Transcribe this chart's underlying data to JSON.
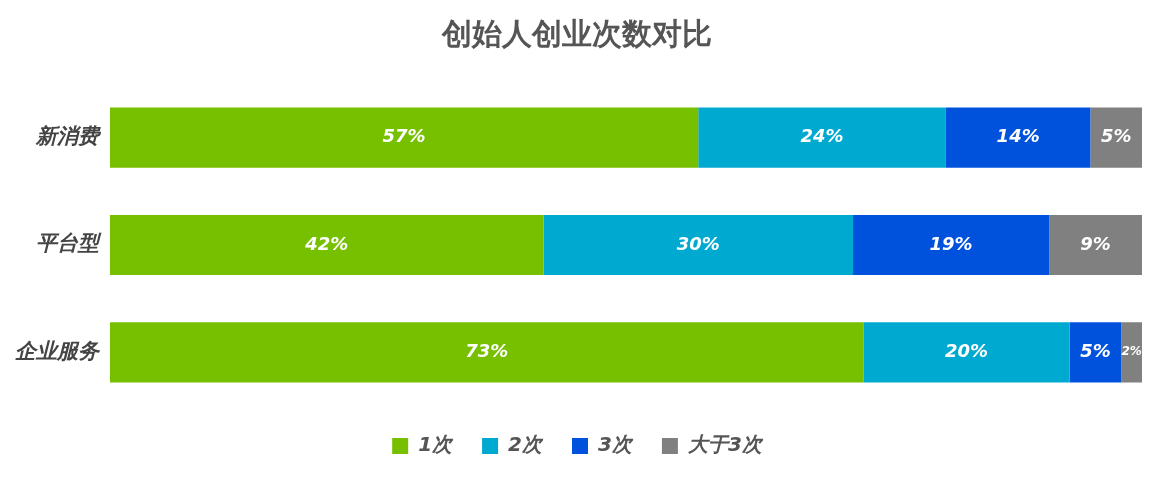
{
  "chart_data": {
    "type": "bar",
    "title": "创始人创业次数对比",
    "orientation": "horizontal",
    "stacked": true,
    "categories": [
      "新消费",
      "平台型",
      "企业服务"
    ],
    "xlim": [
      0,
      100
    ],
    "tick_labels": "y",
    "legend": "bottom",
    "series": [
      {
        "name": "1次",
        "color": "#76c000",
        "values": [
          57,
          42,
          73
        ],
        "value_labels": [
          "57%",
          "42%",
          "73%"
        ]
      },
      {
        "name": "2次",
        "color": "#00a9d0",
        "values": [
          24,
          30,
          20
        ],
        "value_labels": [
          "24%",
          "30%",
          "20%"
        ]
      },
      {
        "name": "3次",
        "color": "#0052dd",
        "values": [
          14,
          19,
          5
        ],
        "value_labels": [
          "14%",
          "19%",
          "5%"
        ]
      },
      {
        "name": "大于3次",
        "color": "#808080",
        "values": [
          5,
          9,
          2
        ],
        "value_labels": [
          "5%",
          "9%",
          "2%"
        ]
      }
    ]
  }
}
